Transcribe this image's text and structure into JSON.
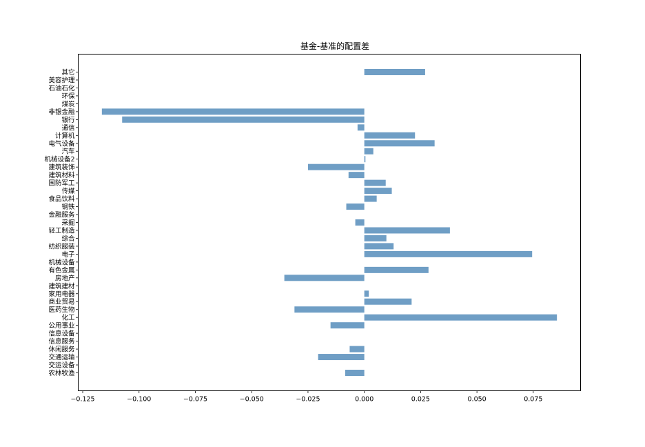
{
  "chart_data": {
    "type": "bar",
    "orientation": "horizontal",
    "title": "基金-基准的配置差",
    "xlabel": "",
    "ylabel": "",
    "xlim": [
      -0.127,
      0.096
    ],
    "xticks": [
      -0.125,
      -0.1,
      -0.075,
      -0.05,
      -0.025,
      0.0,
      0.025,
      0.05,
      0.075
    ],
    "xtick_labels": [
      "−0.125",
      "−0.100",
      "−0.075",
      "−0.050",
      "−0.025",
      "0.000",
      "0.025",
      "0.050",
      "0.075"
    ],
    "grid": false,
    "bar_color": "#6f9ec5",
    "categories": [
      "农林牧渔",
      "交运设备",
      "交通运输",
      "休闲服务",
      "信息服务",
      "信息设备",
      "公用事业",
      "化工",
      "医药生物",
      "商业贸易",
      "家用电器",
      "建筑建材",
      "房地产",
      "有色金属",
      "机械设备",
      "电子",
      "纺织服装",
      "综合",
      "轻工制造",
      "采掘",
      "金融服务",
      "钢铁",
      "食品饮料",
      "传媒",
      "国防军工",
      "建筑材料",
      "建筑装饰",
      "机械设备2",
      "汽车",
      "电气设备",
      "计算机",
      "通信",
      "银行",
      "非银金融",
      "煤炭",
      "环保",
      "石油石化",
      "美容护理",
      "其它"
    ],
    "values": [
      -0.0085,
      0.0,
      -0.0205,
      -0.0065,
      0.0,
      0.0,
      -0.015,
      0.0855,
      -0.031,
      0.021,
      0.002,
      0.0,
      -0.0355,
      0.0285,
      0.0,
      0.0745,
      0.013,
      0.0098,
      0.038,
      -0.004,
      0.0,
      -0.008,
      0.0055,
      0.0122,
      0.0095,
      -0.007,
      -0.025,
      0.0005,
      0.004,
      0.0312,
      0.0225,
      -0.003,
      -0.1075,
      -0.1165,
      0.0,
      0.0,
      0.0,
      0.0,
      0.027
    ]
  }
}
